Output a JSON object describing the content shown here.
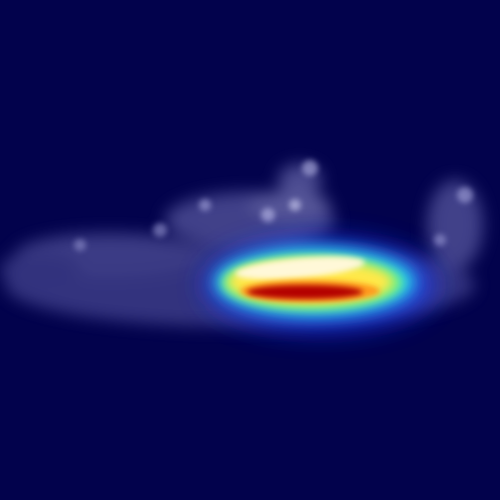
{
  "image": {
    "kind": "saliency heatmap overlay",
    "colormap": "jet",
    "colors": {
      "background": "#02024c",
      "faint_texture": "#8a8ac8",
      "outer_glow": "#1e3cff",
      "cyan_ring": "#28d8e8",
      "green_ring": "#7cf07a",
      "yellow_band": "#ffe94a",
      "orange_band": "#ff9a1e",
      "core": "#b40000",
      "highlight": "#fff8d8"
    }
  }
}
